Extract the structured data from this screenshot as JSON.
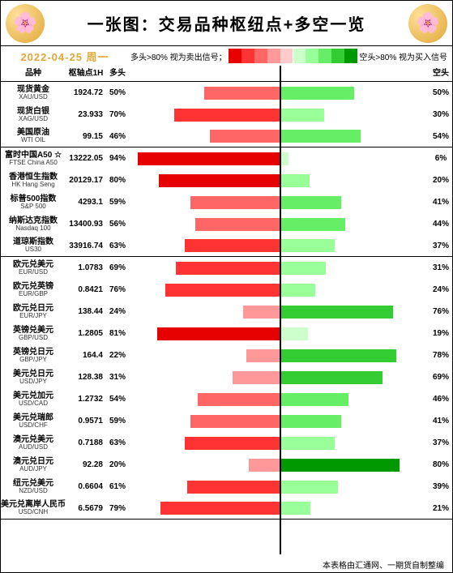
{
  "title": "一张图：交易品种枢纽点+多空一览",
  "date_line": "2022-04-25 周一",
  "legend_left": "多头>80% 视为卖出信号；",
  "legend_right": "空头>80% 视为买入信号",
  "footer": "本表格由汇通网、一期货自制整编",
  "columns": {
    "name": "品种",
    "pivot": "枢轴点1H",
    "long": "多头",
    "short": "空头"
  },
  "legend_red_colors": [
    "#e60000",
    "#ff3333",
    "#ff6666",
    "#ff9999",
    "#ffcccc"
  ],
  "legend_green_colors": [
    "#ccffcc",
    "#99ff99",
    "#66ee66",
    "#33cc33",
    "#009900"
  ],
  "long_bar_colors": [
    "#ffcccc",
    "#ff9999",
    "#ff6666",
    "#ff3333",
    "#e60000"
  ],
  "short_bar_colors": [
    "#ccffcc",
    "#99ff99",
    "#66ee66",
    "#33cc33",
    "#009900"
  ],
  "bar_half_width_pct": 50,
  "groups": [
    [
      {
        "cn": "现货黄金",
        "en": "XAU/USD",
        "pivot": "1924.72",
        "long": 50,
        "short": 50,
        "star": false
      },
      {
        "cn": "现货白银",
        "en": "XAG/USD",
        "pivot": "23.933",
        "long": 70,
        "short": 30,
        "star": false
      },
      {
        "cn": "美国原油",
        "en": "WTI OIL",
        "pivot": "99.15",
        "long": 46,
        "short": 54,
        "star": false
      }
    ],
    [
      {
        "cn": "富时中国A50",
        "en": "FTSE China A50",
        "pivot": "13222.05",
        "long": 94,
        "short": 6,
        "star": true
      },
      {
        "cn": "香港恒生指数",
        "en": "HK Hang Seng",
        "pivot": "20129.17",
        "long": 80,
        "short": 20,
        "star": false
      },
      {
        "cn": "标普500指数",
        "en": "S&P 500",
        "pivot": "4293.1",
        "long": 59,
        "short": 41,
        "star": false
      },
      {
        "cn": "纳斯达克指数",
        "en": "Nasdaq 100",
        "pivot": "13400.93",
        "long": 56,
        "short": 44,
        "star": false
      },
      {
        "cn": "道琼斯指数",
        "en": "US30",
        "pivot": "33916.74",
        "long": 63,
        "short": 37,
        "star": false
      }
    ],
    [
      {
        "cn": "欧元兑美元",
        "en": "EUR/USD",
        "pivot": "1.0783",
        "long": 69,
        "short": 31,
        "star": false
      },
      {
        "cn": "欧元兑英镑",
        "en": "EUR/GBP",
        "pivot": "0.8421",
        "long": 76,
        "short": 24,
        "star": false
      },
      {
        "cn": "欧元兑日元",
        "en": "EUR/JPY",
        "pivot": "138.44",
        "long": 24,
        "short": 76,
        "star": false
      },
      {
        "cn": "英镑兑美元",
        "en": "GBP/USD",
        "pivot": "1.2805",
        "long": 81,
        "short": 19,
        "star": false
      },
      {
        "cn": "英镑兑日元",
        "en": "GBP/JPY",
        "pivot": "164.4",
        "long": 22,
        "short": 78,
        "star": false
      },
      {
        "cn": "美元兑日元",
        "en": "USD/JPY",
        "pivot": "128.38",
        "long": 31,
        "short": 69,
        "star": false
      },
      {
        "cn": "美元兑加元",
        "en": "USD/CAD",
        "pivot": "1.2732",
        "long": 54,
        "short": 46,
        "star": false
      },
      {
        "cn": "美元兑瑞郎",
        "en": "USD/CHF",
        "pivot": "0.9571",
        "long": 59,
        "short": 41,
        "star": false
      },
      {
        "cn": "澳元兑美元",
        "en": "AUD/USD",
        "pivot": "0.7188",
        "long": 63,
        "short": 37,
        "star": false
      },
      {
        "cn": "澳元兑日元",
        "en": "AUD/JPY",
        "pivot": "92.28",
        "long": 20,
        "short": 80,
        "star": false
      },
      {
        "cn": "纽元兑美元",
        "en": "NZD/USD",
        "pivot": "0.6604",
        "long": 61,
        "short": 39,
        "star": false
      },
      {
        "cn": "美元兑离岸人民币",
        "en": "USD/CNH",
        "pivot": "6.5679",
        "long": 79,
        "short": 21,
        "star": false
      }
    ]
  ]
}
